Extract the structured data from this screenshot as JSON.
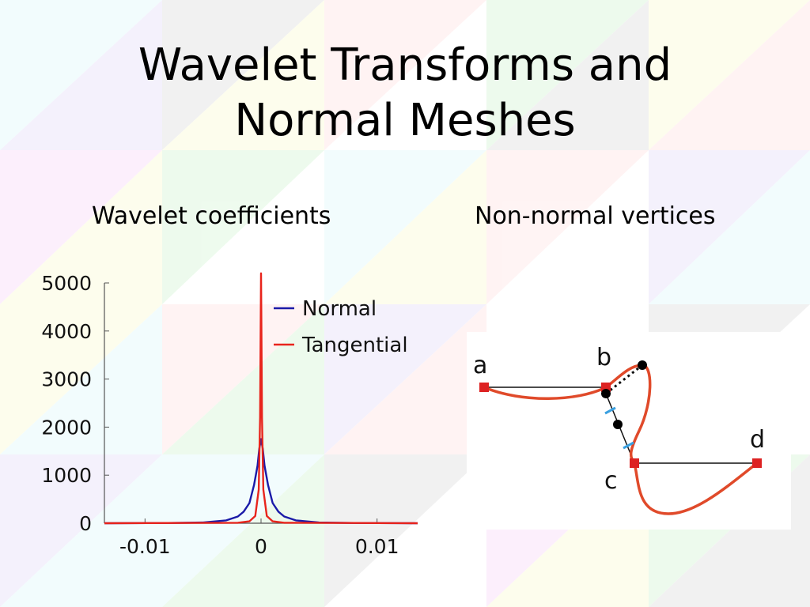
{
  "slide": {
    "title_line1": "Wavelet Transforms and",
    "title_line2": "Normal Meshes",
    "left_heading": "Wavelet coefficients",
    "right_heading": "Non-normal vertices"
  },
  "colors": {
    "normal": "#1a1aa8",
    "tangential": "#e8241c",
    "curve": "#e04a2a",
    "marker": "#dd2222",
    "tick_mark": "#3aa0e0"
  },
  "chart_data": {
    "type": "line",
    "title": "",
    "xlabel": "",
    "ylabel": "",
    "xlim": [
      -0.0135,
      0.0135
    ],
    "ylim": [
      0,
      5000
    ],
    "x_ticks": [
      -0.01,
      0,
      0.01
    ],
    "x_tick_labels": [
      "-0.01",
      "0",
      "0.01"
    ],
    "y_ticks": [
      0,
      1000,
      2000,
      3000,
      4000,
      5000
    ],
    "y_tick_labels": [
      "0",
      "1000",
      "2000",
      "3000",
      "4000",
      "5000"
    ],
    "legend_position": "top-right",
    "grid": false,
    "series": [
      {
        "name": "Normal",
        "color": "#1a1aa8",
        "x": [
          -0.0135,
          -0.008,
          -0.005,
          -0.003,
          -0.002,
          -0.0015,
          -0.001,
          -0.0006,
          -0.0003,
          -0.00015,
          0,
          0.00015,
          0.0003,
          0.0006,
          0.001,
          0.0015,
          0.002,
          0.003,
          0.005,
          0.008,
          0.0135
        ],
        "y": [
          0,
          5,
          15,
          60,
          140,
          240,
          420,
          800,
          1200,
          1550,
          1750,
          1550,
          1200,
          800,
          420,
          240,
          140,
          60,
          15,
          5,
          0
        ]
      },
      {
        "name": "Tangential",
        "color": "#e8241c",
        "x": [
          -0.0135,
          -0.002,
          -0.001,
          -0.0005,
          -0.0002,
          -8e-05,
          0,
          8e-05,
          0.0002,
          0.0005,
          0.001,
          0.002,
          0.0135
        ],
        "y": [
          0,
          10,
          40,
          150,
          700,
          2200,
          5200,
          2200,
          700,
          150,
          40,
          10,
          0
        ]
      }
    ]
  },
  "diagram": {
    "labels": {
      "a": "a",
      "b": "b",
      "c": "c",
      "d": "d"
    }
  }
}
